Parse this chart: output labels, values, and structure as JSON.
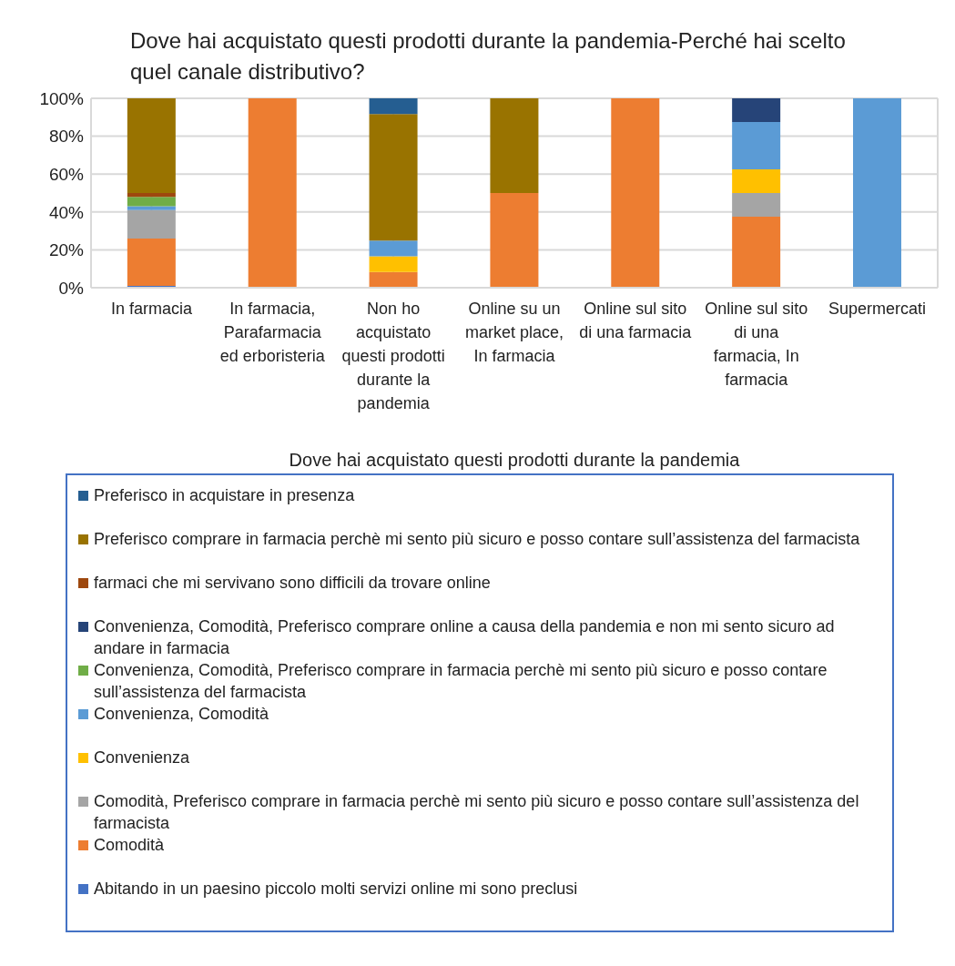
{
  "chart_data": {
    "type": "bar",
    "stacked": true,
    "title": "Dove hai acquistato questi prodotti durante la pandemia-Perché hai scelto quel canale distributivo?",
    "xlabel": "Dove hai acquistato questi prodotti durante la pandemia",
    "categories": [
      "In farmacia",
      "In farmacia, Parafarmacia ed erboristeria",
      "Non ho acquistato questi prodotti durante la pandemia",
      "Online su un market place, In farmacia",
      "Online sul sito di una farmacia",
      "Online sul sito di una farmacia, In farmacia",
      "Supermercati"
    ],
    "series": [
      {
        "name": "Abitando in un paesino piccolo molti servizi online mi sono preclusi",
        "color": "#4472c4",
        "values": [
          1,
          0,
          0,
          0,
          0,
          0,
          0
        ]
      },
      {
        "name": "Comodità",
        "color": "#ed7d31",
        "values": [
          25,
          100,
          8.3,
          50,
          100,
          37.5,
          0
        ]
      },
      {
        "name": "Comodità, Preferisco comprare in farmacia perchè mi sento più sicuro e posso contare sull’assistenza del farmacista",
        "color": "#a5a5a5",
        "values": [
          15,
          0,
          0,
          0,
          0,
          12.5,
          0
        ]
      },
      {
        "name": "Convenienza",
        "color": "#ffc000",
        "values": [
          0,
          0,
          8.3,
          0,
          0,
          12.5,
          0
        ]
      },
      {
        "name": "Convenienza, Comodità",
        "color": "#5b9bd5",
        "values": [
          2,
          0,
          8.3,
          0,
          0,
          25,
          100
        ]
      },
      {
        "name": "Convenienza, Comodità, Preferisco comprare in farmacia perchè mi sento più sicuro e posso contare sull’assistenza del farmacista",
        "color": "#70ad47",
        "values": [
          5,
          0,
          0,
          0,
          0,
          0,
          0
        ]
      },
      {
        "name": "Convenienza, Comodità, Preferisco comprare online a causa della pandemia e non mi sento sicuro ad andare in farmacia",
        "color": "#264478",
        "values": [
          0,
          0,
          0,
          0,
          0,
          12.5,
          0
        ]
      },
      {
        "name": "farmaci che mi servivano sono difficili da trovare online",
        "color": "#9e480e",
        "values": [
          2,
          0,
          0,
          0,
          0,
          0,
          0
        ]
      },
      {
        "name": "Preferisco comprare in farmacia perchè mi sento più sicuro e posso contare sull’assistenza del farmacista",
        "color": "#997300",
        "values": [
          50,
          0,
          66.8,
          50,
          0,
          0,
          0
        ]
      },
      {
        "name": "Preferisco in acquistare in presenza",
        "color": "#255e91",
        "values": [
          0,
          0,
          8.3,
          0,
          0,
          0,
          0
        ]
      }
    ],
    "ylim": [
      0,
      100
    ],
    "yticks": [
      {
        "value": 0,
        "label": "0%"
      },
      {
        "value": 20,
        "label": "20%"
      },
      {
        "value": 40,
        "label": "40%"
      },
      {
        "value": 60,
        "label": "60%"
      },
      {
        "value": 80,
        "label": "80%"
      },
      {
        "value": 100,
        "label": "100%"
      }
    ],
    "grid": true,
    "legend": "bottom"
  }
}
